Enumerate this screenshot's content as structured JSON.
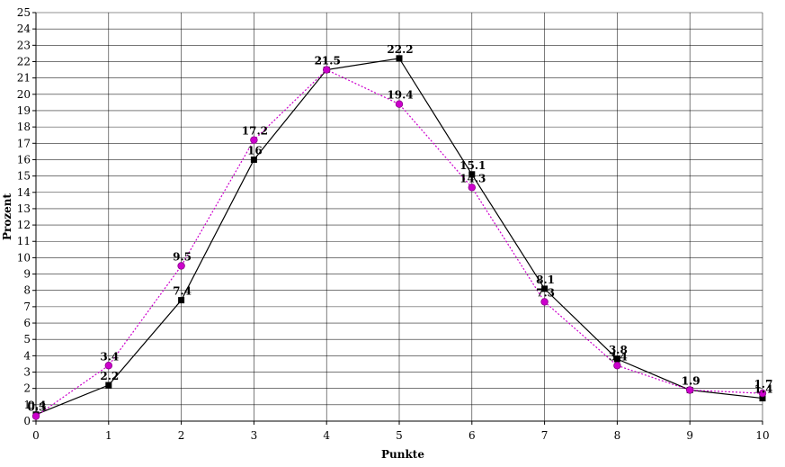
{
  "chart_data": {
    "type": "line",
    "xlabel": "Punkte",
    "ylabel": "Prozent",
    "x": [
      0,
      1,
      2,
      3,
      4,
      5,
      6,
      7,
      8,
      9,
      10
    ],
    "xlim": [
      0,
      10
    ],
    "ylim": [
      0,
      25
    ],
    "grid": true,
    "legend": "none",
    "series": [
      {
        "values": [
          0.4,
          2.2,
          7.4,
          16,
          21.5,
          22.2,
          15.1,
          8.1,
          3.8,
          1.9,
          1.4
        ],
        "labels": [
          "0.4",
          "2.2",
          "7.4",
          "16",
          "21.5",
          "22.2",
          "15.1",
          "8.1",
          "3.8",
          "1.9",
          "1.4"
        ],
        "color": "#000000",
        "marker": "square",
        "line_style": "solid"
      },
      {
        "values": [
          0.3,
          3.4,
          9.5,
          17.2,
          21.5,
          19.4,
          14.3,
          7.3,
          3.4,
          1.9,
          1.7
        ],
        "labels": [
          "0.3",
          "3.4",
          "9.5",
          "17.2",
          "21.5",
          "19.4",
          "14.3",
          "7.3",
          "3.4",
          "1.9",
          "1.7"
        ],
        "color": "#cc00cc",
        "marker": "circle",
        "line_style": "dotted"
      }
    ],
    "gridline_color": "#000000"
  }
}
